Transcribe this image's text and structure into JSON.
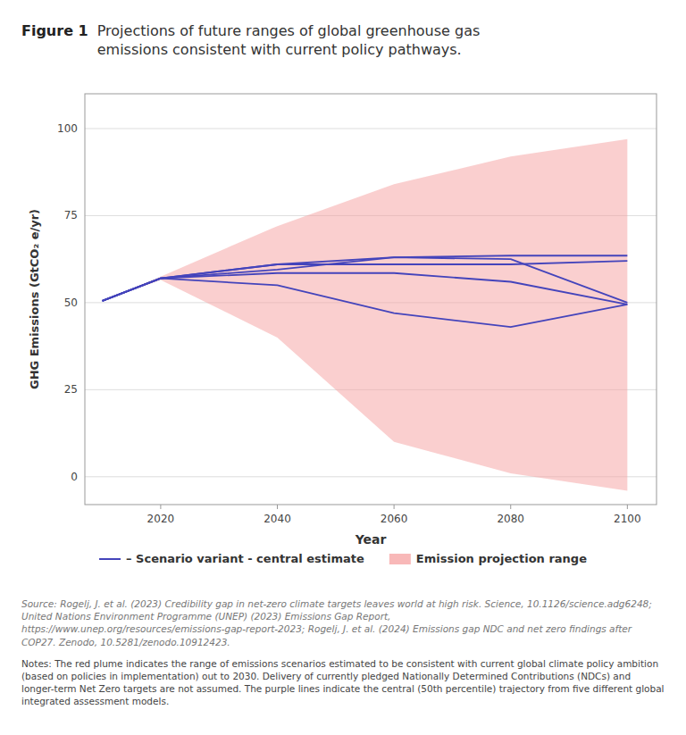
{
  "chart_data": {
    "type": "line",
    "title": "Figure 1",
    "subtitle": "Projections of future ranges of global greenhouse gas\nemissions consistent with current policy pathways.",
    "x_label": "Year",
    "y_label": "GHG Emissions (GtCO₂ e/yr)",
    "x": [
      2010,
      2020,
      2040,
      2060,
      2080,
      2100
    ],
    "xlim": [
      2007,
      2105
    ],
    "xticks": [
      2020,
      2040,
      2060,
      2080,
      2100
    ],
    "ylim": [
      -8,
      110
    ],
    "yticks": [
      0,
      25,
      50,
      75,
      100
    ],
    "grid": true,
    "series": [
      {
        "name": "– Scenario variant - central estimate",
        "color": "#4444BB",
        "values": [
          50.5,
          57.0,
          59.5,
          63.0,
          63.5,
          63.5
        ]
      },
      {
        "color": "#4444BB",
        "values": [
          50.5,
          57.0,
          61.0,
          61.0,
          61.0,
          62.0
        ]
      },
      {
        "color": "#4444BB",
        "values": [
          50.5,
          57.0,
          58.5,
          58.5,
          56.0,
          49.5
        ]
      },
      {
        "color": "#4444BB",
        "values": [
          50.5,
          57.0,
          55.0,
          47.0,
          43.0,
          49.5
        ]
      },
      {
        "color": "#4444BB",
        "values": [
          50.5,
          57.0,
          61.0,
          63.0,
          62.5,
          50.0
        ]
      },
      {
        "name": "Emission projection range",
        "type": "area",
        "color": "#F5A0A0",
        "upper": [
          50.5,
          57.5,
          72.0,
          84.0,
          92.0,
          97.0
        ],
        "lower": [
          50.5,
          56.5,
          40.0,
          10.0,
          1.0,
          -4.0
        ]
      }
    ],
    "annotations": [
      "Source: Rogelj, J. et al. (2023) Credibility gap in net-zero climate targets leaves world at high risk. Science, 10.1126/science.adg6248; United Nations Environment Programme (UNEP) (2023) Emissions Gap Report, https://www.unep.org/resources/emissions-gap-report-2023; Rogelj, J. et al. (2024) Emissions gap NDC and net zero findings after COP27. Zenodo, 10.5281/zenodo.10912423.",
      "Notes: The red plume indicates the range of emissions scenarios estimated to be consistent with current global climate policy ambition (based on policies in implementation) out to 2030. Delivery of currently pledged Nationally Determined Contributions (NDCs) and longer-term Net Zero targets are not assumed. The purple lines indicate the central (50th percentile) trajectory from five different global integrated assessment models."
    ]
  }
}
